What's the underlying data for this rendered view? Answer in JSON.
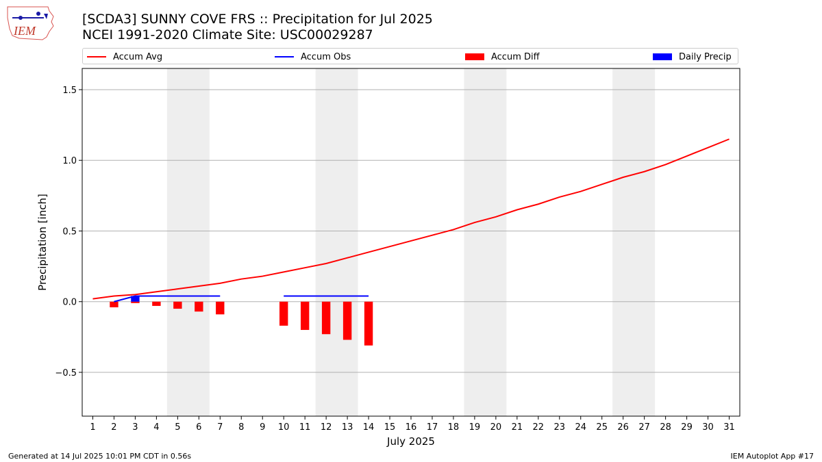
{
  "header": {
    "title_line1": "[SCDA3] SUNNY COVE FRS :: Precipitation for Jul 2025",
    "title_line2": "NCEI 1991-2020 Climate Site: USC00029287",
    "logo_text": "IEM"
  },
  "legend": {
    "items": [
      {
        "label": "Accum Avg",
        "color": "#ff0000",
        "kind": "line"
      },
      {
        "label": "Accum Obs",
        "color": "#0000ff",
        "kind": "line"
      },
      {
        "label": "Accum Diff",
        "color": "#ff0000",
        "kind": "box"
      },
      {
        "label": "Daily Precip",
        "color": "#0000ff",
        "kind": "box"
      }
    ]
  },
  "footer": {
    "left": "Generated at 14 Jul 2025 10:01 PM CDT in 0.56s",
    "right": "IEM Autoplot App #17"
  },
  "chart_data": {
    "type": "line",
    "title": "[SCDA3] SUNNY COVE FRS :: Precipitation for Jul 2025",
    "subtitle": "NCEI 1991-2020 Climate Site: USC00029287",
    "xlabel": "July 2025",
    "ylabel": "Precipitation [inch]",
    "xlim": [
      0.5,
      31.5
    ],
    "ylim": [
      -0.81,
      1.65
    ],
    "x_ticks": [
      1,
      2,
      3,
      4,
      5,
      6,
      7,
      8,
      9,
      10,
      11,
      12,
      13,
      14,
      15,
      16,
      17,
      18,
      19,
      20,
      21,
      22,
      23,
      24,
      25,
      26,
      27,
      28,
      29,
      30,
      31
    ],
    "y_ticks": [
      -0.5,
      0.0,
      0.5,
      1.0,
      1.5
    ],
    "y_tick_labels": [
      "−0.5",
      "0.0",
      "0.5",
      "1.0",
      "1.5"
    ],
    "grid": "horizontal",
    "weekend_shading": [
      [
        4.5,
        6.5
      ],
      [
        11.5,
        13.5
      ],
      [
        18.5,
        20.5
      ],
      [
        25.5,
        27.5
      ]
    ],
    "series": [
      {
        "name": "Accum Avg",
        "type": "line",
        "color": "#ff0000",
        "x": [
          1,
          2,
          3,
          4,
          5,
          6,
          7,
          8,
          9,
          10,
          11,
          12,
          13,
          14,
          15,
          16,
          17,
          18,
          19,
          20,
          21,
          22,
          23,
          24,
          25,
          26,
          27,
          28,
          29,
          30,
          31
        ],
        "values": [
          0.02,
          0.04,
          0.05,
          0.07,
          0.09,
          0.11,
          0.13,
          0.16,
          0.18,
          0.21,
          0.24,
          0.27,
          0.31,
          0.35,
          0.39,
          0.43,
          0.47,
          0.51,
          0.56,
          0.6,
          0.65,
          0.69,
          0.74,
          0.78,
          0.83,
          0.88,
          0.92,
          0.97,
          1.03,
          1.09,
          1.15
        ]
      },
      {
        "name": "Accum Obs",
        "type": "line",
        "color": "#0000ff",
        "x": [
          2,
          3,
          4,
          5,
          6,
          7,
          10,
          11,
          12,
          13,
          14
        ],
        "values": [
          0.0,
          0.04,
          0.04,
          0.04,
          0.04,
          0.04,
          0.04,
          0.04,
          0.04,
          0.04,
          0.04
        ],
        "segments": [
          [
            2,
            7
          ],
          [
            10,
            14
          ]
        ]
      },
      {
        "name": "Accum Diff",
        "type": "bar",
        "color": "#ff0000",
        "x": [
          2,
          3,
          4,
          5,
          6,
          7,
          10,
          11,
          12,
          13,
          14
        ],
        "values": [
          -0.04,
          -0.01,
          -0.03,
          -0.05,
          -0.07,
          -0.09,
          -0.17,
          -0.2,
          -0.23,
          -0.27,
          -0.31
        ]
      },
      {
        "name": "Daily Precip",
        "type": "bar",
        "color": "#0000ff",
        "x": [
          3
        ],
        "values": [
          0.04
        ]
      }
    ]
  }
}
